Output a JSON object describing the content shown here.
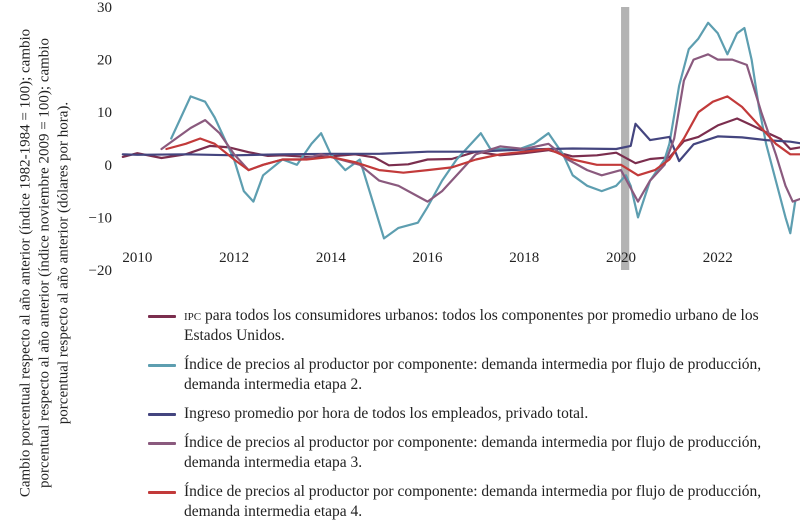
{
  "chart_data": {
    "type": "line",
    "ylabel": "Cambio porcentual respecto al año anterior (índice 1982-1984 = 100); cambio porcentual respecto al año anterior (índice noviembre 2009 = 100); cambio porcentual respecto al año anterior (dólares por hora).",
    "xlabel": "",
    "title": "",
    "ylim": [
      -20,
      30
    ],
    "xlim": [
      2009.6,
      2023.7
    ],
    "yticks": [
      -20,
      -10,
      0,
      10,
      20,
      30
    ],
    "xticks": [
      2010,
      2012,
      2014,
      2016,
      2018,
      2020,
      2022
    ],
    "grid": false,
    "legend_position": "bottom",
    "annotations": [
      {
        "type": "shaded-band",
        "x_start": 2020.0,
        "x_end": 2020.17,
        "color": "#b3b3b3"
      }
    ],
    "series": [
      {
        "name": "IPC para todos los consumidores urbanos: todos los componentes por promedio urbano de los Estados Unidos.",
        "color": "#7b2e4e",
        "points": [
          [
            2009.7,
            1.5
          ],
          [
            2010,
            2.2
          ],
          [
            2010.5,
            1.3
          ],
          [
            2011,
            2.0
          ],
          [
            2011.5,
            3.6
          ],
          [
            2011.9,
            3.3
          ],
          [
            2012.3,
            2.4
          ],
          [
            2012.7,
            1.7
          ],
          [
            2013,
            1.8
          ],
          [
            2013.5,
            1.5
          ],
          [
            2014,
            1.6
          ],
          [
            2014.5,
            2.0
          ],
          [
            2014.9,
            1.4
          ],
          [
            2015.2,
            -0.1
          ],
          [
            2015.6,
            0.1
          ],
          [
            2016,
            1.0
          ],
          [
            2016.5,
            1.1
          ],
          [
            2017,
            2.5
          ],
          [
            2017.5,
            1.8
          ],
          [
            2018,
            2.2
          ],
          [
            2018.5,
            2.8
          ],
          [
            2019,
            1.6
          ],
          [
            2019.5,
            1.8
          ],
          [
            2019.9,
            2.3
          ],
          [
            2020.3,
            0.3
          ],
          [
            2020.6,
            1.1
          ],
          [
            2021,
            1.4
          ],
          [
            2021.3,
            4.5
          ],
          [
            2021.6,
            5.3
          ],
          [
            2022,
            7.5
          ],
          [
            2022.4,
            8.8
          ],
          [
            2022.8,
            7.1
          ],
          [
            2023,
            6.2
          ],
          [
            2023.3,
            4.9
          ],
          [
            2023.5,
            3.0
          ],
          [
            2023.7,
            3.3
          ]
        ]
      },
      {
        "name": "Índice de precios al productor por componente: demanda intermedia por flujo de producción, demanda intermedia etapa 2.",
        "color": "#5d9eb0",
        "points": [
          [
            2010.7,
            5
          ],
          [
            2010.9,
            9
          ],
          [
            2011.1,
            13
          ],
          [
            2011.4,
            12
          ],
          [
            2011.6,
            9
          ],
          [
            2011.8,
            5
          ],
          [
            2012,
            1
          ],
          [
            2012.2,
            -5
          ],
          [
            2012.4,
            -7
          ],
          [
            2012.6,
            -2
          ],
          [
            2013,
            1
          ],
          [
            2013.3,
            0
          ],
          [
            2013.6,
            4
          ],
          [
            2013.8,
            6
          ],
          [
            2014,
            2
          ],
          [
            2014.3,
            -1
          ],
          [
            2014.6,
            1
          ],
          [
            2014.9,
            -8
          ],
          [
            2015.1,
            -14
          ],
          [
            2015.4,
            -12
          ],
          [
            2015.8,
            -11
          ],
          [
            2016,
            -8
          ],
          [
            2016.3,
            -3
          ],
          [
            2016.6,
            1
          ],
          [
            2016.9,
            4
          ],
          [
            2017.1,
            6
          ],
          [
            2017.3,
            3
          ],
          [
            2017.6,
            3
          ],
          [
            2017.9,
            3
          ],
          [
            2018.2,
            4
          ],
          [
            2018.5,
            6
          ],
          [
            2018.8,
            2
          ],
          [
            2019,
            -2
          ],
          [
            2019.3,
            -4
          ],
          [
            2019.6,
            -5
          ],
          [
            2019.9,
            -4
          ],
          [
            2020.1,
            -2
          ],
          [
            2020.2,
            -4
          ],
          [
            2020.35,
            -10
          ],
          [
            2020.6,
            -3
          ],
          [
            2020.9,
            1
          ],
          [
            2021,
            4
          ],
          [
            2021.2,
            15
          ],
          [
            2021.4,
            22
          ],
          [
            2021.6,
            24
          ],
          [
            2021.8,
            27
          ],
          [
            2022,
            25
          ],
          [
            2022.2,
            21
          ],
          [
            2022.4,
            25
          ],
          [
            2022.55,
            26
          ],
          [
            2022.7,
            20
          ],
          [
            2022.85,
            11
          ],
          [
            2023,
            4
          ],
          [
            2023.2,
            -3
          ],
          [
            2023.4,
            -10
          ],
          [
            2023.5,
            -13
          ],
          [
            2023.6,
            -7
          ]
        ]
      },
      {
        "name": "Ingreso promedio por hora de todos los empleados, privado total.",
        "color": "#44457f",
        "points": [
          [
            2009.7,
            2.0
          ],
          [
            2010,
            1.9
          ],
          [
            2011,
            2.0
          ],
          [
            2012,
            1.8
          ],
          [
            2013,
            2.0
          ],
          [
            2014,
            2.1
          ],
          [
            2015,
            2.1
          ],
          [
            2016,
            2.5
          ],
          [
            2017,
            2.5
          ],
          [
            2018,
            2.9
          ],
          [
            2019,
            3.1
          ],
          [
            2019.9,
            3.0
          ],
          [
            2020.2,
            3.6
          ],
          [
            2020.3,
            7.8
          ],
          [
            2020.6,
            4.7
          ],
          [
            2021,
            5.3
          ],
          [
            2021.2,
            0.7
          ],
          [
            2021.5,
            3.9
          ],
          [
            2022,
            5.4
          ],
          [
            2022.5,
            5.2
          ],
          [
            2023,
            4.7
          ],
          [
            2023.5,
            4.4
          ],
          [
            2023.7,
            4.1
          ]
        ]
      },
      {
        "name": "Índice de precios al productor por componente: demanda intermedia por flujo de producción, demanda intermedia etapa 3.",
        "color": "#8a5a7e",
        "points": [
          [
            2010.5,
            3
          ],
          [
            2010.8,
            5
          ],
          [
            2011.1,
            7
          ],
          [
            2011.4,
            8.5
          ],
          [
            2011.7,
            6
          ],
          [
            2012,
            2
          ],
          [
            2012.3,
            -1
          ],
          [
            2012.6,
            0
          ],
          [
            2013,
            1
          ],
          [
            2013.4,
            1
          ],
          [
            2013.8,
            2
          ],
          [
            2014.2,
            1
          ],
          [
            2014.6,
            0
          ],
          [
            2015,
            -3
          ],
          [
            2015.4,
            -4
          ],
          [
            2015.8,
            -6
          ],
          [
            2016,
            -7
          ],
          [
            2016.3,
            -5
          ],
          [
            2016.7,
            -1
          ],
          [
            2017,
            2
          ],
          [
            2017.5,
            3.5
          ],
          [
            2018,
            3
          ],
          [
            2018.5,
            4
          ],
          [
            2018.9,
            1
          ],
          [
            2019.3,
            -1
          ],
          [
            2019.6,
            -2
          ],
          [
            2020,
            -1
          ],
          [
            2020.35,
            -7
          ],
          [
            2020.6,
            -3
          ],
          [
            2020.9,
            0
          ],
          [
            2021.1,
            5
          ],
          [
            2021.3,
            16
          ],
          [
            2021.5,
            20
          ],
          [
            2021.8,
            21
          ],
          [
            2022,
            20
          ],
          [
            2022.3,
            20
          ],
          [
            2022.6,
            19
          ],
          [
            2022.9,
            10
          ],
          [
            2023.2,
            2
          ],
          [
            2023.4,
            -4
          ],
          [
            2023.55,
            -7
          ],
          [
            2023.7,
            -6.5
          ]
        ]
      },
      {
        "name": "Índice de precios al productor por componente: demanda intermedia por flujo de producción, demanda intermedia etapa 4.",
        "color": "#c23a3a",
        "points": [
          [
            2010.6,
            3
          ],
          [
            2011,
            4
          ],
          [
            2011.3,
            5
          ],
          [
            2011.6,
            4
          ],
          [
            2012,
            1
          ],
          [
            2012.3,
            -1
          ],
          [
            2012.6,
            0
          ],
          [
            2013,
            1
          ],
          [
            2013.5,
            1
          ],
          [
            2014,
            1.5
          ],
          [
            2014.5,
            0.5
          ],
          [
            2015,
            -1
          ],
          [
            2015.5,
            -1.5
          ],
          [
            2016,
            -1
          ],
          [
            2016.5,
            -0.5
          ],
          [
            2017,
            1
          ],
          [
            2017.5,
            2
          ],
          [
            2018,
            2.5
          ],
          [
            2018.5,
            3
          ],
          [
            2019,
            1
          ],
          [
            2019.5,
            0
          ],
          [
            2020,
            0
          ],
          [
            2020.35,
            -2
          ],
          [
            2020.7,
            -1
          ],
          [
            2021,
            1
          ],
          [
            2021.3,
            5
          ],
          [
            2021.6,
            10
          ],
          [
            2021.9,
            12
          ],
          [
            2022.2,
            13
          ],
          [
            2022.5,
            11
          ],
          [
            2022.9,
            7
          ],
          [
            2023.2,
            4
          ],
          [
            2023.5,
            2
          ],
          [
            2023.7,
            2
          ]
        ]
      }
    ]
  }
}
